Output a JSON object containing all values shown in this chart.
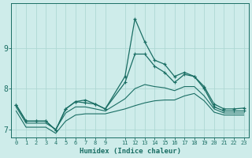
{
  "xlabel": "Humidex (Indice chaleur)",
  "bg_color": "#ceecea",
  "grid_color": "#aed8d4",
  "line_color": "#1a6e64",
  "x": [
    0,
    1,
    2,
    3,
    4,
    5,
    6,
    7,
    8,
    9,
    11,
    12,
    13,
    14,
    15,
    16,
    17,
    18,
    19,
    20,
    21,
    22,
    23
  ],
  "line1": [
    7.6,
    7.2,
    7.2,
    7.2,
    6.98,
    7.5,
    7.68,
    7.72,
    7.62,
    7.5,
    8.3,
    9.72,
    9.15,
    8.7,
    8.6,
    8.3,
    8.4,
    8.3,
    8.05,
    7.62,
    7.5,
    7.5,
    7.52
  ],
  "line2": [
    7.6,
    7.2,
    7.2,
    7.2,
    6.98,
    7.5,
    7.68,
    7.65,
    7.62,
    7.5,
    8.15,
    8.85,
    8.85,
    8.55,
    8.4,
    8.15,
    8.35,
    8.3,
    8.0,
    7.55,
    7.45,
    7.45,
    7.45
  ],
  "line3": [
    7.55,
    7.15,
    7.15,
    7.15,
    7.0,
    7.4,
    7.55,
    7.55,
    7.5,
    7.45,
    7.75,
    8.0,
    8.1,
    8.05,
    8.02,
    7.95,
    8.05,
    8.05,
    7.82,
    7.5,
    7.4,
    7.4,
    7.4
  ],
  "line4": [
    7.45,
    7.05,
    7.05,
    7.05,
    6.9,
    7.2,
    7.35,
    7.38,
    7.38,
    7.38,
    7.5,
    7.58,
    7.65,
    7.7,
    7.72,
    7.72,
    7.82,
    7.88,
    7.7,
    7.42,
    7.35,
    7.35,
    7.35
  ],
  "ylim": [
    6.8,
    10.1
  ],
  "yticks": [
    7,
    8,
    9
  ],
  "xticks": [
    0,
    1,
    2,
    3,
    4,
    5,
    6,
    7,
    8,
    9,
    11,
    12,
    13,
    14,
    15,
    16,
    17,
    18,
    19,
    20,
    21,
    22,
    23
  ],
  "xlim": [
    -0.5,
    23.5
  ]
}
